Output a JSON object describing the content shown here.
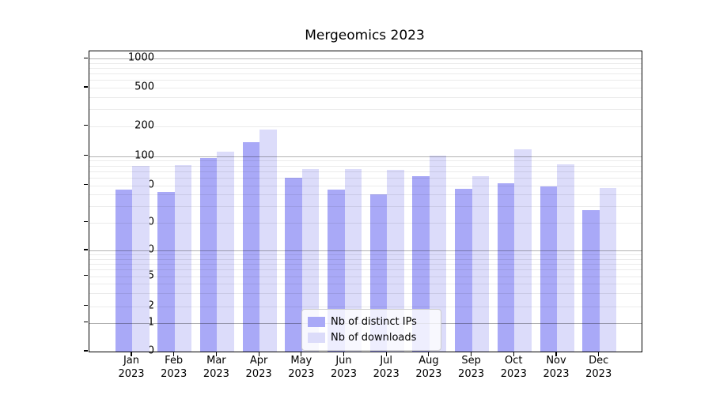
{
  "title": "Mergeomics 2023",
  "colors": {
    "distinct_ips": "#a9a9f7",
    "downloads": "#dcdcfa",
    "grid_major": "rgba(0,0,0,0.30)",
    "grid_minor": "rgba(0,0,0,0.08)"
  },
  "legend": {
    "items": [
      {
        "label": "Nb of distinct IPs",
        "color": "#a9a9f7"
      },
      {
        "label": "Nb of downloads",
        "color": "#dcdcfa"
      }
    ],
    "position": "lower center"
  },
  "chart_data": {
    "type": "bar",
    "title": "Mergeomics 2023",
    "categories": [
      "Jan",
      "Feb",
      "Mar",
      "Apr",
      "May",
      "Jun",
      "Jul",
      "Aug",
      "Sep",
      "Oct",
      "Nov",
      "Dec"
    ],
    "year": "2023",
    "series": [
      {
        "name": "Nb of distinct IPs",
        "color": "#a9a9f7",
        "values": [
          45,
          42,
          95,
          137,
          60,
          45,
          40,
          62,
          46,
          52,
          49,
          27
        ]
      },
      {
        "name": "Nb of downloads",
        "color": "#dcdcfa",
        "values": [
          79,
          81,
          111,
          186,
          73,
          74,
          72,
          102,
          62,
          118,
          83,
          47
        ]
      }
    ],
    "xlabel": "",
    "ylabel": "",
    "yscale": "symlog",
    "y_ticks": [
      0,
      1,
      2,
      5,
      10,
      20,
      50,
      100,
      200,
      500,
      1000
    ],
    "ylim": [
      0,
      1000
    ],
    "grid": true,
    "legend_position": "lower center"
  }
}
